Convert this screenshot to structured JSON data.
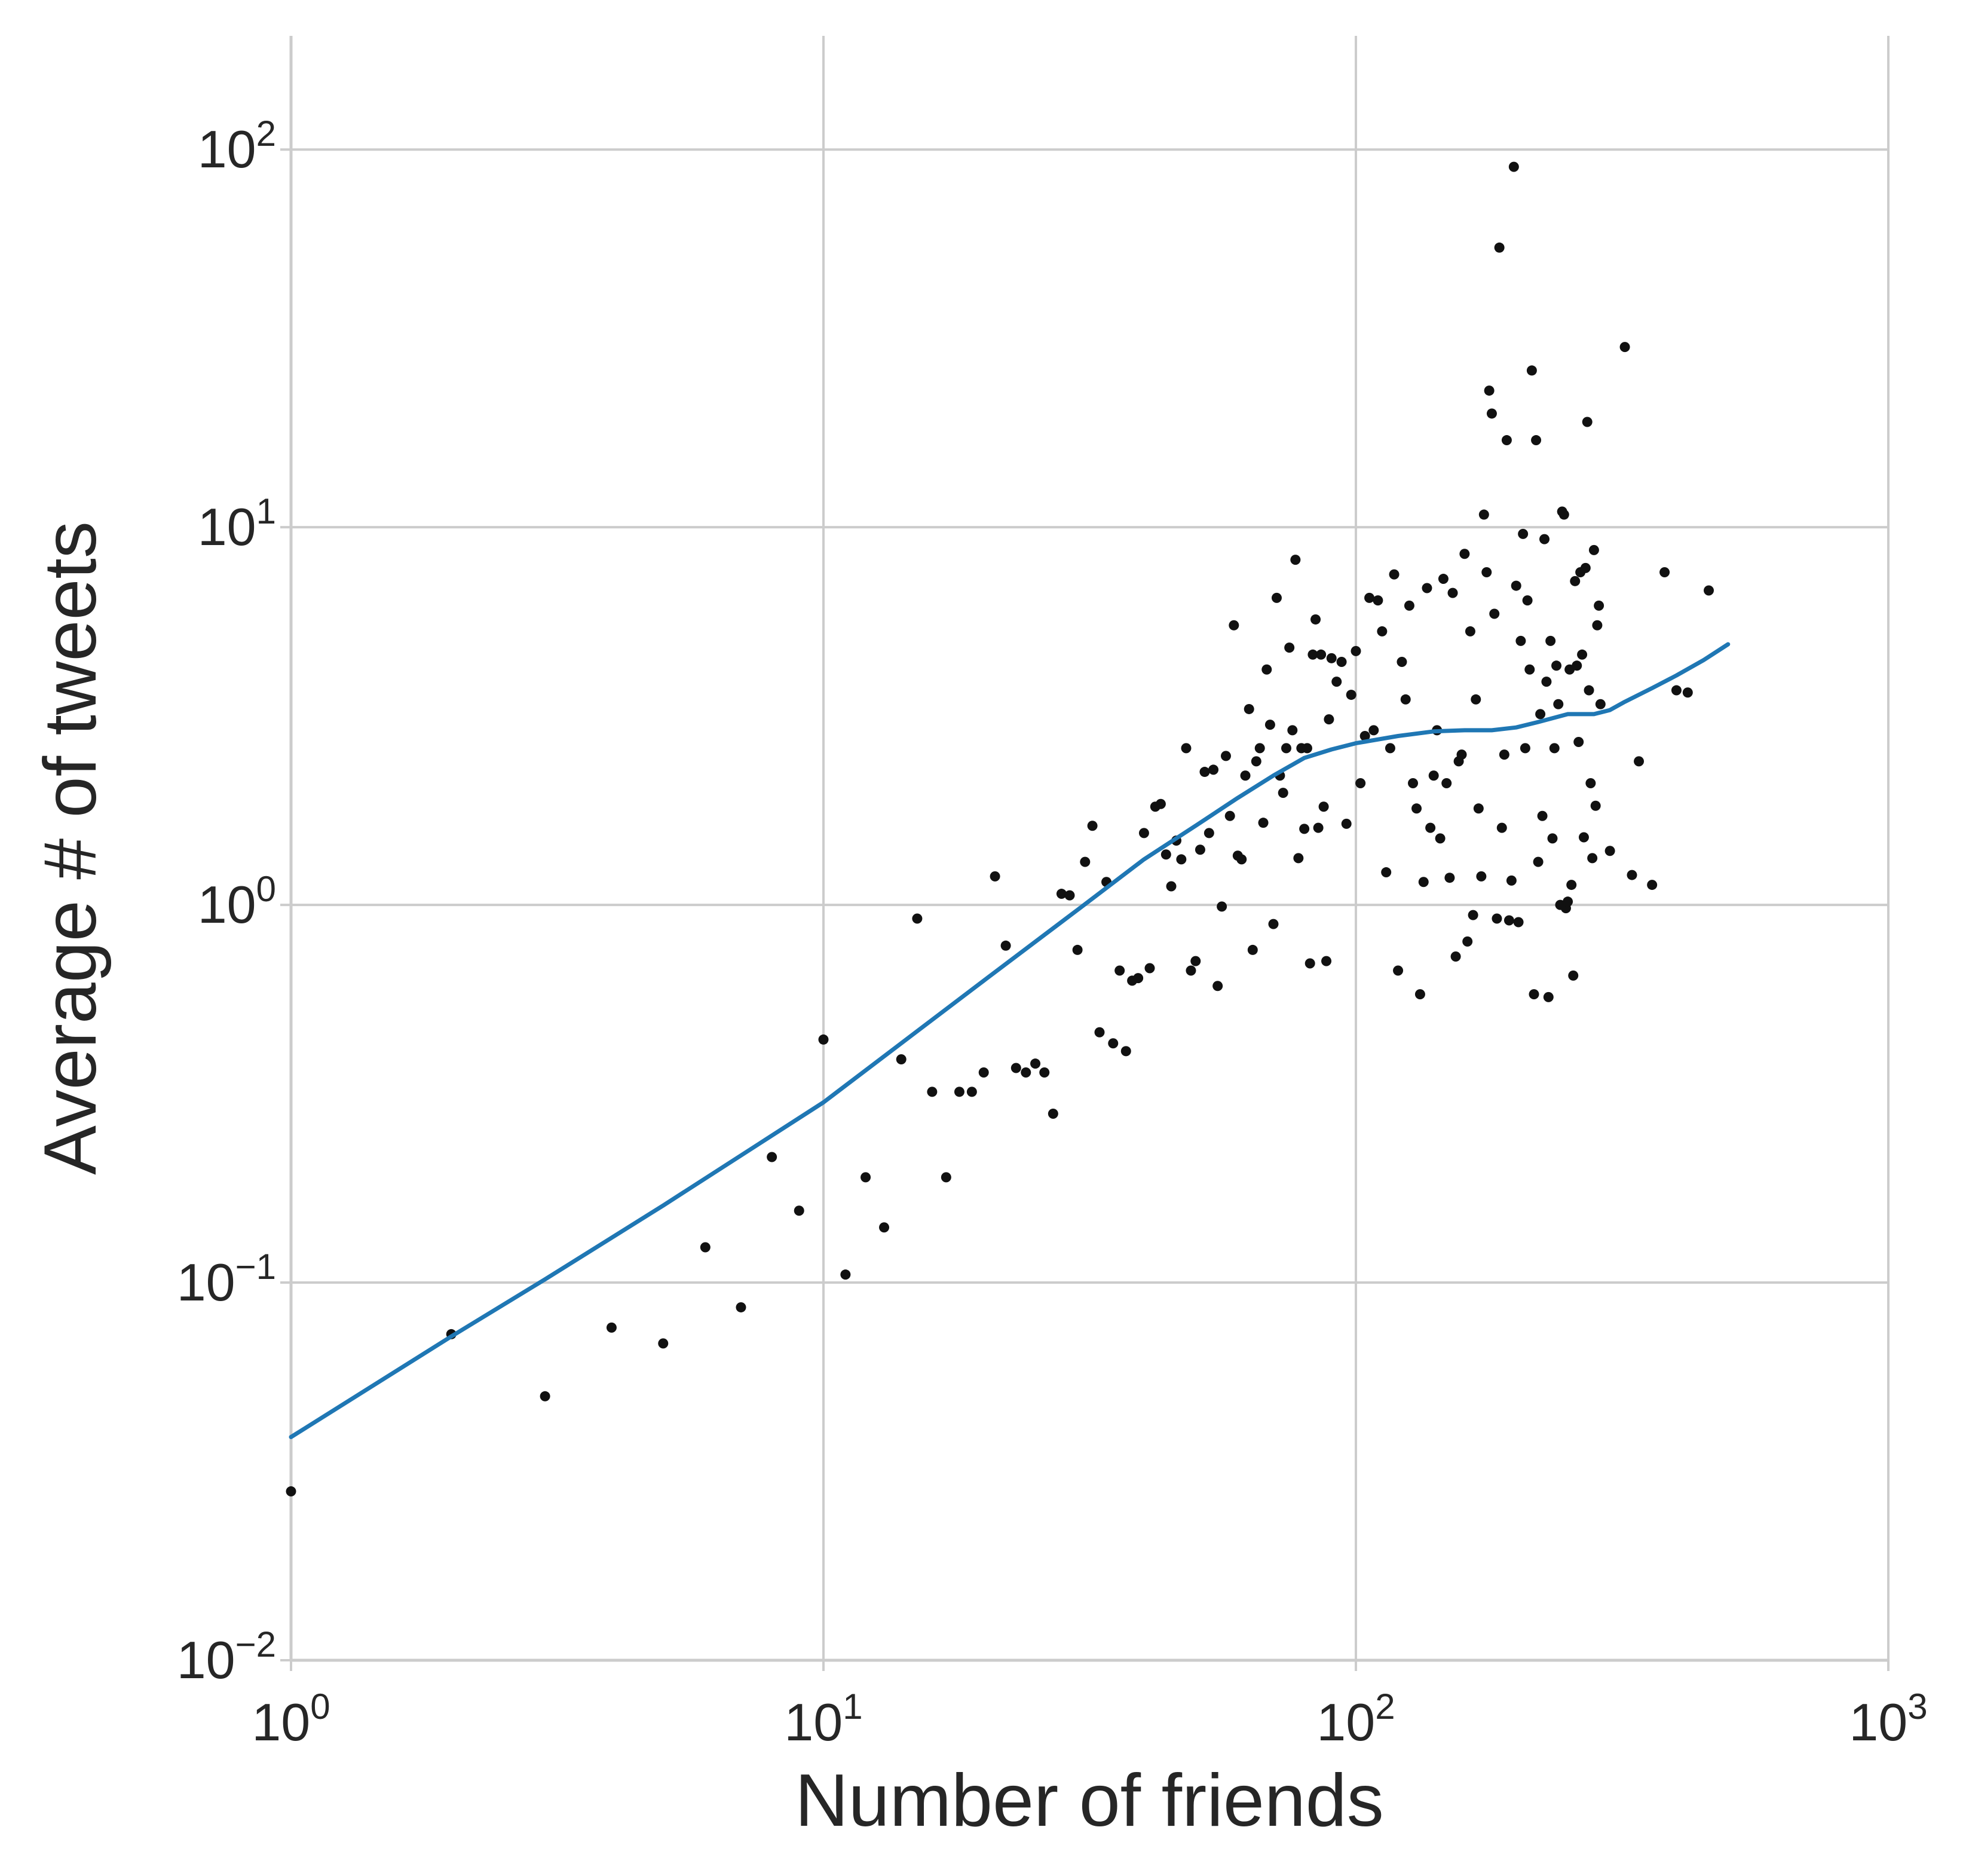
{
  "chart_data": {
    "type": "scatter",
    "title": "",
    "xlabel": "Number of friends",
    "ylabel": "Average # of tweets",
    "x_scale": "log",
    "y_scale": "log",
    "xlim": [
      1,
      1000
    ],
    "ylim": [
      0.01,
      200
    ],
    "grid": true,
    "x_ticks": [
      {
        "value": 1,
        "base": "10",
        "exp": "0"
      },
      {
        "value": 10,
        "base": "10",
        "exp": "1"
      },
      {
        "value": 100,
        "base": "10",
        "exp": "2"
      },
      {
        "value": 1000,
        "base": "10",
        "exp": "3"
      }
    ],
    "y_ticks": [
      {
        "value": 0.01,
        "base": "10",
        "exp": "−2"
      },
      {
        "value": 0.1,
        "base": "10",
        "exp": "−1"
      },
      {
        "value": 1,
        "base": "10",
        "exp": "0"
      },
      {
        "value": 10,
        "base": "10",
        "exp": "1"
      },
      {
        "value": 100,
        "base": "10",
        "exp": "2"
      }
    ],
    "colors": {
      "points": "#111111",
      "trend": "#1f77b4",
      "grid": "#cccccc",
      "axes": "#cccccc"
    },
    "series": [
      {
        "kind": "points",
        "points": [
          [
            1,
            0.028
          ],
          [
            2,
            0.073
          ],
          [
            3,
            0.05
          ],
          [
            4,
            0.076
          ],
          [
            5,
            0.069
          ],
          [
            6,
            0.124
          ],
          [
            7,
            0.086
          ],
          [
            8,
            0.215
          ],
          [
            9,
            0.155
          ],
          [
            10,
            0.44
          ],
          [
            11,
            0.105
          ],
          [
            12,
            0.19
          ],
          [
            13,
            0.14
          ],
          [
            14,
            0.39
          ],
          [
            15,
            0.92
          ],
          [
            16,
            0.32
          ],
          [
            17,
            0.19
          ],
          [
            18,
            0.32
          ],
          [
            19,
            0.32
          ],
          [
            20,
            0.36
          ],
          [
            21,
            1.19
          ],
          [
            22,
            0.78
          ],
          [
            23,
            0.37
          ],
          [
            24,
            0.36
          ],
          [
            25,
            0.38
          ],
          [
            26,
            0.36
          ],
          [
            27,
            0.28
          ],
          [
            28,
            1.07
          ],
          [
            29,
            1.06
          ],
          [
            30,
            0.76
          ],
          [
            31,
            1.3
          ],
          [
            32,
            1.62
          ],
          [
            33,
            0.46
          ],
          [
            34,
            1.15
          ],
          [
            35,
            0.43
          ],
          [
            36,
            0.67
          ],
          [
            37,
            0.41
          ],
          [
            38,
            0.63
          ],
          [
            39,
            0.64
          ],
          [
            40,
            1.55
          ],
          [
            41,
            0.68
          ],
          [
            42,
            1.82
          ],
          [
            43,
            1.85
          ],
          [
            44,
            1.36
          ],
          [
            45,
            1.12
          ],
          [
            46,
            1.48
          ],
          [
            47,
            1.32
          ],
          [
            48,
            2.6
          ],
          [
            49,
            0.67
          ],
          [
            50,
            0.71
          ],
          [
            51,
            1.4
          ],
          [
            52,
            2.25
          ],
          [
            53,
            1.55
          ],
          [
            54,
            2.28
          ],
          [
            55,
            0.61
          ],
          [
            56,
            0.99
          ],
          [
            57,
            2.48
          ],
          [
            58,
            1.72
          ],
          [
            59,
            5.5
          ],
          [
            60,
            1.35
          ],
          [
            61,
            1.32
          ],
          [
            62,
            2.2
          ],
          [
            63,
            3.3
          ],
          [
            64,
            0.76
          ],
          [
            65,
            2.4
          ],
          [
            66,
            2.6
          ],
          [
            67,
            1.65
          ],
          [
            68,
            4.2
          ],
          [
            69,
            3.0
          ],
          [
            70,
            0.89
          ],
          [
            71,
            6.5
          ],
          [
            72,
            2.2
          ],
          [
            73,
            1.98
          ],
          [
            74,
            2.6
          ],
          [
            75,
            4.8
          ],
          [
            76,
            2.9
          ],
          [
            77,
            8.2
          ],
          [
            78,
            1.33
          ],
          [
            79,
            2.6
          ],
          [
            80,
            1.59
          ],
          [
            81,
            2.6
          ],
          [
            82,
            0.7
          ],
          [
            83,
            4.6
          ],
          [
            84,
            5.7
          ],
          [
            85,
            1.6
          ],
          [
            86,
            4.6
          ],
          [
            87,
            1.82
          ],
          [
            88,
            0.71
          ],
          [
            89,
            3.1
          ],
          [
            90,
            4.5
          ],
          [
            92,
            3.9
          ],
          [
            94,
            4.4
          ],
          [
            96,
            1.64
          ],
          [
            98,
            3.6
          ],
          [
            100,
            4.7
          ],
          [
            102,
            2.1
          ],
          [
            104,
            2.8
          ],
          [
            106,
            6.5
          ],
          [
            108,
            2.9
          ],
          [
            110,
            6.4
          ],
          [
            112,
            5.3
          ],
          [
            114,
            1.22
          ],
          [
            116,
            2.6
          ],
          [
            118,
            7.5
          ],
          [
            120,
            0.67
          ],
          [
            122,
            4.4
          ],
          [
            124,
            3.5
          ],
          [
            126,
            6.2
          ],
          [
            128,
            2.1
          ],
          [
            130,
            1.8
          ],
          [
            132,
            0.58
          ],
          [
            134,
            1.15
          ],
          [
            136,
            6.9
          ],
          [
            138,
            1.6
          ],
          [
            140,
            2.2
          ],
          [
            142,
            2.9
          ],
          [
            144,
            1.5
          ],
          [
            146,
            7.3
          ],
          [
            148,
            2.1
          ],
          [
            150,
            1.18
          ],
          [
            152,
            6.7
          ],
          [
            154,
            0.73
          ],
          [
            156,
            2.4
          ],
          [
            158,
            2.5
          ],
          [
            160,
            8.5
          ],
          [
            162,
            0.8
          ],
          [
            164,
            5.3
          ],
          [
            166,
            0.94
          ],
          [
            168,
            3.5
          ],
          [
            170,
            1.8
          ],
          [
            172,
            1.19
          ],
          [
            174,
            10.8
          ],
          [
            176,
            7.6
          ],
          [
            178,
            23
          ],
          [
            180,
            20
          ],
          [
            182,
            5.9
          ],
          [
            184,
            0.92
          ],
          [
            186,
            55
          ],
          [
            188,
            1.6
          ],
          [
            190,
            2.5
          ],
          [
            192,
            17
          ],
          [
            194,
            0.91
          ],
          [
            196,
            1.16
          ],
          [
            198,
            90
          ],
          [
            200,
            7.0
          ],
          [
            202,
            0.9
          ],
          [
            204,
            5.0
          ],
          [
            206,
            9.6
          ],
          [
            208,
            2.6
          ],
          [
            210,
            6.4
          ],
          [
            212,
            4.2
          ],
          [
            214,
            26
          ],
          [
            216,
            0.58
          ],
          [
            218,
            17
          ],
          [
            220,
            1.3
          ],
          [
            222,
            3.2
          ],
          [
            224,
            1.72
          ],
          [
            226,
            9.3
          ],
          [
            228,
            3.9
          ],
          [
            230,
            0.57
          ],
          [
            232,
            5.0
          ],
          [
            234,
            1.5
          ],
          [
            236,
            2.6
          ],
          [
            238,
            4.3
          ],
          [
            240,
            3.4
          ],
          [
            242,
            1.0
          ],
          [
            244,
            11
          ],
          [
            246,
            10.8
          ],
          [
            248,
            0.98
          ],
          [
            250,
            1.02
          ],
          [
            252,
            4.2
          ],
          [
            254,
            1.13
          ],
          [
            256,
            0.65
          ],
          [
            258,
            7.2
          ],
          [
            260,
            4.3
          ],
          [
            262,
            2.7
          ],
          [
            264,
            7.6
          ],
          [
            266,
            4.6
          ],
          [
            268,
            1.51
          ],
          [
            270,
            7.8
          ],
          [
            272,
            19
          ],
          [
            274,
            3.7
          ],
          [
            276,
            2.1
          ],
          [
            278,
            1.33
          ],
          [
            280,
            8.7
          ],
          [
            282,
            1.83
          ],
          [
            284,
            5.5
          ],
          [
            286,
            6.2
          ],
          [
            288,
            3.4
          ],
          [
            300,
            1.39
          ],
          [
            320,
            30
          ],
          [
            330,
            1.2
          ],
          [
            340,
            2.4
          ],
          [
            360,
            1.13
          ],
          [
            380,
            7.6
          ],
          [
            400,
            3.7
          ],
          [
            420,
            3.65
          ],
          [
            460,
            6.8
          ]
        ]
      },
      {
        "kind": "line",
        "points": [
          [
            1,
            0.039
          ],
          [
            2,
            0.072
          ],
          [
            3,
            0.102
          ],
          [
            5,
            0.16
          ],
          [
            10,
            0.3
          ],
          [
            20,
            0.63
          ],
          [
            30,
            0.97
          ],
          [
            40,
            1.32
          ],
          [
            50,
            1.62
          ],
          [
            60,
            1.92
          ],
          [
            70,
            2.2
          ],
          [
            80,
            2.45
          ],
          [
            90,
            2.58
          ],
          [
            100,
            2.68
          ],
          [
            120,
            2.8
          ],
          [
            140,
            2.88
          ],
          [
            160,
            2.9
          ],
          [
            180,
            2.9
          ],
          [
            200,
            2.95
          ],
          [
            220,
            3.05
          ],
          [
            250,
            3.2
          ],
          [
            280,
            3.2
          ],
          [
            300,
            3.28
          ],
          [
            320,
            3.45
          ],
          [
            360,
            3.75
          ],
          [
            400,
            4.05
          ],
          [
            450,
            4.45
          ],
          [
            500,
            4.9
          ]
        ]
      }
    ]
  }
}
